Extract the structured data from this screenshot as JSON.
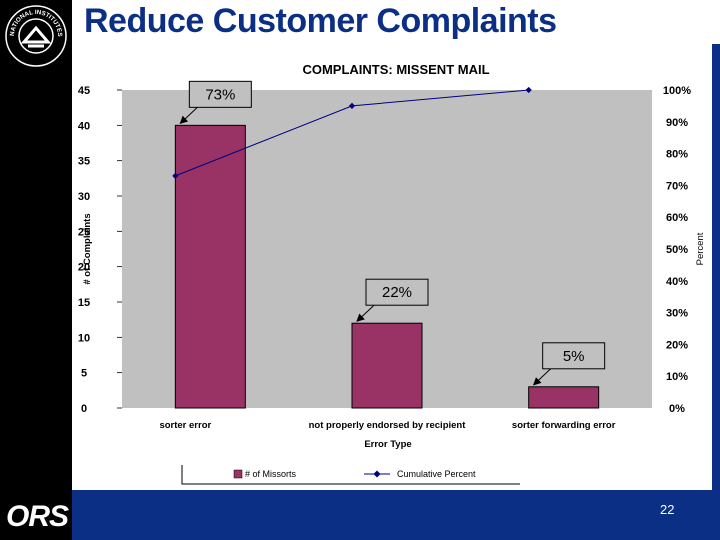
{
  "slide": {
    "title": "Reduce Customer Complaints",
    "page_number": "22",
    "logo_text": "ORS",
    "seal_text": "NATIONAL INSTITUTES OF HEALTH"
  },
  "colors": {
    "bar": "#993366",
    "line": "#000080",
    "plot_bg": "#c0c0c0",
    "brand_blue": "#0a2f84"
  },
  "chart_data": {
    "type": "bar",
    "title": "COMPLAINTS: MISSENT MAIL",
    "xlabel": "Error Type",
    "ylabel": "# of Complaints",
    "y2label": "Percent",
    "categories": [
      "sorter error",
      "not properly endorsed by recipient",
      "sorter forwarding error"
    ],
    "series": [
      {
        "name": "# of Missorts",
        "type": "bar",
        "axis": "left",
        "values": [
          40,
          12,
          3
        ]
      },
      {
        "name": "Cumulative Percent",
        "type": "line",
        "axis": "right",
        "values": [
          73,
          95,
          100
        ]
      }
    ],
    "ylim": [
      0,
      45
    ],
    "yticks": [
      "0",
      "5",
      "10",
      "15",
      "20",
      "25",
      "30",
      "35",
      "40",
      "45"
    ],
    "y2lim": [
      0,
      100
    ],
    "y2ticks": [
      "0%",
      "10%",
      "20%",
      "30%",
      "40%",
      "50%",
      "60%",
      "70%",
      "80%",
      "90%",
      "100%"
    ],
    "annotations": [
      "73%",
      "22%",
      "5%"
    ],
    "legend_position": "bottom"
  }
}
